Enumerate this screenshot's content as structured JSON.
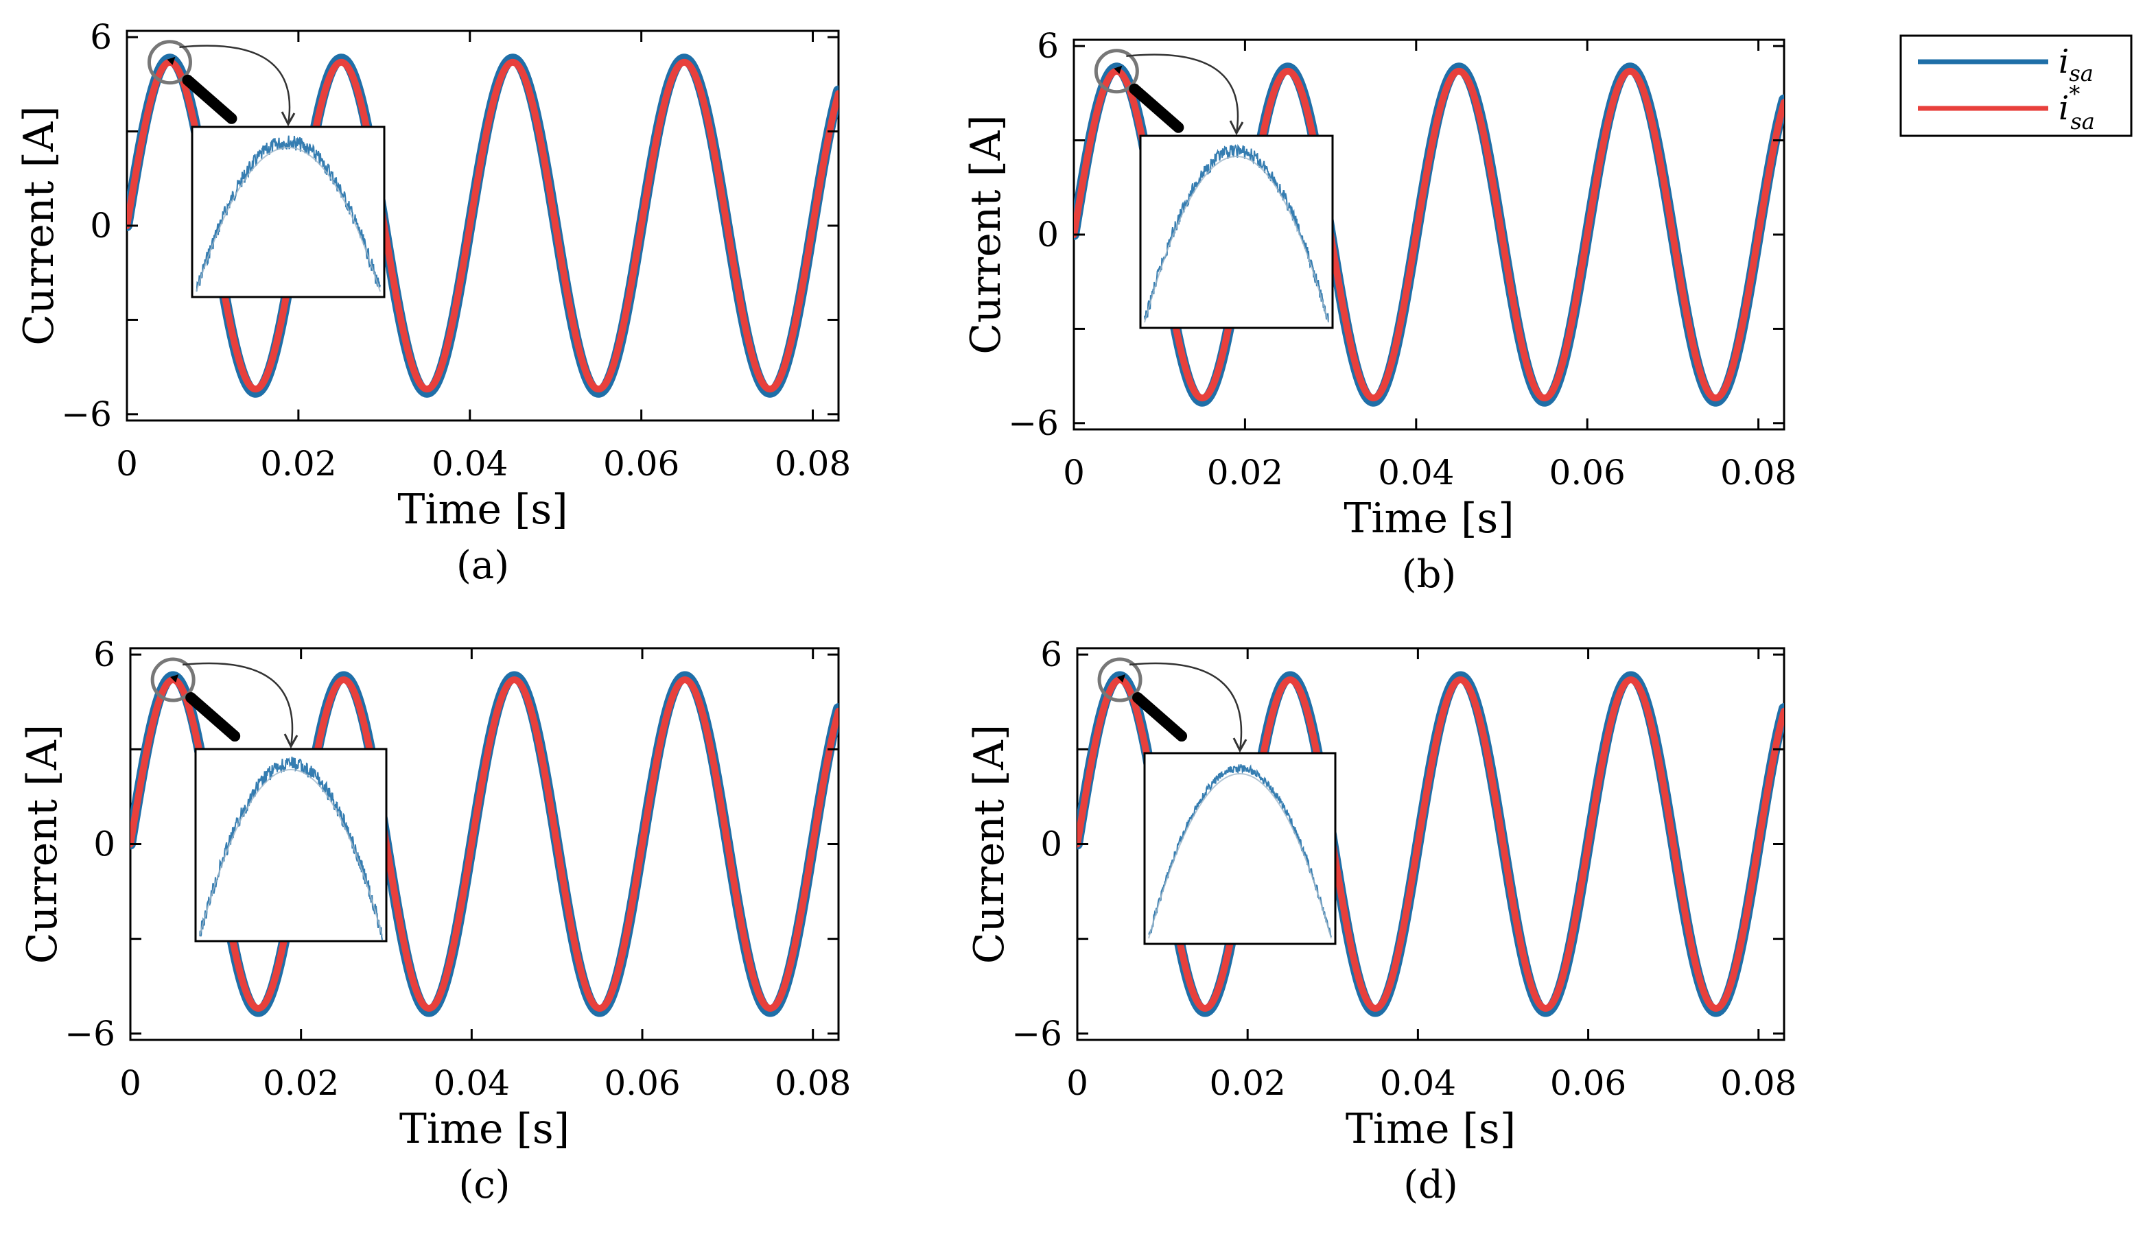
{
  "colors": {
    "measured": "#1f6fa8",
    "reference": "#e8403c",
    "axis": "#000000",
    "background": "#ffffff"
  },
  "legend": {
    "entries": [
      {
        "symbol": "i",
        "subscript": "sa",
        "superscript": "",
        "series": "measured"
      },
      {
        "symbol": "i",
        "subscript": "sa",
        "superscript": "*",
        "series": "reference"
      }
    ]
  },
  "chart_data": [
    {
      "type": "line",
      "panel_label": "(a)",
      "xlabel": "Time [s]",
      "ylabel": "Current [A]",
      "xlim": [
        0,
        0.083
      ],
      "ylim": [
        -6.2,
        6.2
      ],
      "xticks": [
        0,
        0.02,
        0.04,
        0.06,
        0.08
      ],
      "xtick_labels": [
        "0",
        "0.02",
        "0.04",
        "0.06",
        "0.08"
      ],
      "yticks": [
        -6,
        0,
        6
      ],
      "ytick_labels": [
        "−6",
        "0",
        "6"
      ],
      "grid": false,
      "series": [
        {
          "name": "i_sa",
          "color_key": "measured",
          "frequency_hz": 50,
          "amplitude_a": 5.3,
          "ripple_a": 0.35
        },
        {
          "name": "i*_sa",
          "color_key": "reference",
          "frequency_hz": 50,
          "amplitude_a": 5.2
        }
      ],
      "inset": {
        "zoom_center_time_s": 0.005,
        "zoom_center_current_a": 5.2,
        "ripple_level": 1.0
      }
    },
    {
      "type": "line",
      "panel_label": "(b)",
      "xlabel": "Time [s]",
      "ylabel": "Current [A]",
      "xlim": [
        0,
        0.083
      ],
      "ylim": [
        -6.2,
        6.2
      ],
      "xticks": [
        0,
        0.02,
        0.04,
        0.06,
        0.08
      ],
      "xtick_labels": [
        "0",
        "0.02",
        "0.04",
        "0.06",
        "0.08"
      ],
      "yticks": [
        -6,
        0,
        6
      ],
      "ytick_labels": [
        "−6",
        "0",
        "6"
      ],
      "grid": false,
      "series": [
        {
          "name": "i_sa",
          "color_key": "measured",
          "frequency_hz": 50,
          "amplitude_a": 5.3,
          "ripple_a": 0.3
        },
        {
          "name": "i*_sa",
          "color_key": "reference",
          "frequency_hz": 50,
          "amplitude_a": 5.2
        }
      ],
      "inset": {
        "zoom_center_time_s": 0.005,
        "zoom_center_current_a": 5.2,
        "ripple_level": 0.9
      }
    },
    {
      "type": "line",
      "panel_label": "(c)",
      "xlabel": "Time [s]",
      "ylabel": "Current [A]",
      "xlim": [
        0,
        0.083
      ],
      "ylim": [
        -6.2,
        6.2
      ],
      "xticks": [
        0,
        0.02,
        0.04,
        0.06,
        0.08
      ],
      "xtick_labels": [
        "0",
        "0.02",
        "0.04",
        "0.06",
        "0.08"
      ],
      "yticks": [
        -6,
        0,
        6
      ],
      "ytick_labels": [
        "−6",
        "0",
        "6"
      ],
      "grid": false,
      "series": [
        {
          "name": "i_sa",
          "color_key": "measured",
          "frequency_hz": 50,
          "amplitude_a": 5.3,
          "ripple_a": 0.35
        },
        {
          "name": "i*_sa",
          "color_key": "reference",
          "frequency_hz": 50,
          "amplitude_a": 5.2
        }
      ],
      "inset": {
        "zoom_center_time_s": 0.005,
        "zoom_center_current_a": 5.2,
        "ripple_level": 1.0
      }
    },
    {
      "type": "line",
      "panel_label": "(d)",
      "xlabel": "Time [s]",
      "ylabel": "Current [A]",
      "xlim": [
        0,
        0.083
      ],
      "ylim": [
        -6.2,
        6.2
      ],
      "xticks": [
        0,
        0.02,
        0.04,
        0.06,
        0.08
      ],
      "xtick_labels": [
        "0",
        "0.02",
        "0.04",
        "0.06",
        "0.08"
      ],
      "yticks": [
        -6,
        0,
        6
      ],
      "ytick_labels": [
        "−6",
        "0",
        "6"
      ],
      "grid": false,
      "series": [
        {
          "name": "i_sa",
          "color_key": "measured",
          "frequency_hz": 50,
          "amplitude_a": 5.3,
          "ripple_a": 0.2
        },
        {
          "name": "i*_sa",
          "color_key": "reference",
          "frequency_hz": 50,
          "amplitude_a": 5.2
        }
      ],
      "inset": {
        "zoom_center_time_s": 0.005,
        "zoom_center_current_a": 5.2,
        "ripple_level": 0.55
      }
    }
  ]
}
